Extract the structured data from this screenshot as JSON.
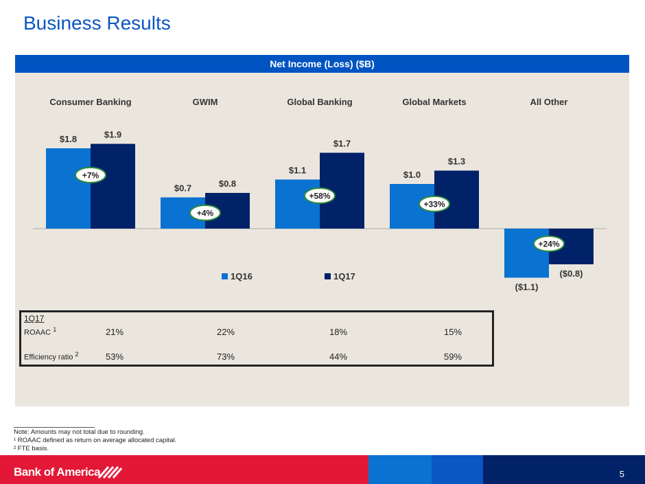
{
  "title": "Business Results",
  "chart_data": {
    "type": "bar",
    "title": "Net Income (Loss) ($B)",
    "categories": [
      "Consumer Banking",
      "GWIM",
      "Global Banking",
      "Global Markets",
      "All Other"
    ],
    "series": [
      {
        "name": "1Q16",
        "color": "#0a72d1",
        "values": [
          1.8,
          0.7,
          1.1,
          1.0,
          -1.1
        ],
        "labels": [
          "$1.8",
          "$0.7",
          "$1.1",
          "$1.0",
          "($1.1)"
        ]
      },
      {
        "name": "1Q17",
        "color": "#012169",
        "values": [
          1.9,
          0.8,
          1.7,
          1.3,
          -0.8
        ],
        "labels": [
          "$1.9",
          "$0.8",
          "$1.7",
          "$1.3",
          "($0.8)"
        ]
      }
    ],
    "growth": [
      "+7%",
      "+4%",
      "+58%",
      "+33%",
      "+24%"
    ],
    "legend": "bottom"
  },
  "table": {
    "period": "1Q17",
    "rows": [
      {
        "label": "ROAAC",
        "sup": "1",
        "values": [
          "21%",
          "22%",
          "18%",
          "15%"
        ]
      },
      {
        "label": "Efficiency ratio",
        "sup": "2",
        "values": [
          "53%",
          "73%",
          "44%",
          "59%"
        ]
      }
    ]
  },
  "notes": [
    "Note: Amounts may not total due to rounding.",
    "¹ ROAAC defined as return on average allocated capital.",
    "² FTE basis."
  ],
  "footer": {
    "brand": "Bank of America",
    "page": "5"
  }
}
